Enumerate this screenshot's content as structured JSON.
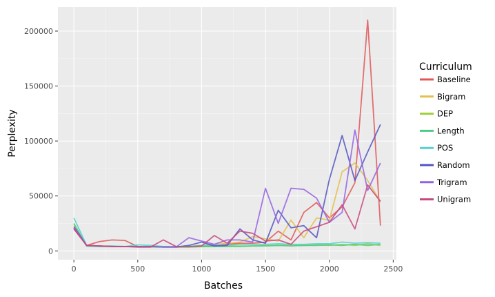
{
  "chart_data": {
    "type": "line",
    "title": "",
    "xlabel": "Batches",
    "ylabel": "Perplexity",
    "xlim": [
      -125,
      2525
    ],
    "ylim": [
      -8000,
      222000
    ],
    "x_ticks": [
      0,
      500,
      1000,
      1500,
      2000,
      2500
    ],
    "y_ticks": [
      0,
      50000,
      100000,
      150000,
      200000
    ],
    "x_tick_labels": [
      "0",
      "500",
      "1000",
      "1500",
      "2000",
      "2500"
    ],
    "y_tick_labels": [
      "0",
      "50000",
      "100000",
      "150000",
      "200000"
    ],
    "grid": true,
    "background": "#ebebeb",
    "legend": {
      "title": "Curriculum",
      "position": "right"
    },
    "series": [
      {
        "name": "Baseline",
        "color": "#e15759",
        "x": [
          0,
          100,
          200,
          300,
          400,
          500,
          600,
          700,
          800,
          900,
          1000,
          1100,
          1200,
          1300,
          1400,
          1500,
          1600,
          1700,
          1800,
          1900,
          2000,
          2100,
          2200,
          2300,
          2400
        ],
        "y": [
          20000,
          5000,
          8500,
          10000,
          9500,
          4000,
          4000,
          4000,
          4000,
          4000,
          4500,
          5000,
          6000,
          7000,
          7000,
          8000,
          18000,
          10000,
          35000,
          44000,
          30000,
          40000,
          62000,
          210000,
          23000
        ]
      },
      {
        "name": "Bigram",
        "color": "#e3c04d",
        "x": [
          0,
          100,
          200,
          300,
          400,
          500,
          600,
          700,
          800,
          900,
          1000,
          1100,
          1200,
          1300,
          1400,
          1500,
          1600,
          1700,
          1800,
          1900,
          2000,
          2100,
          2200,
          2300,
          2400
        ],
        "y": [
          24000,
          5000,
          4500,
          4500,
          4000,
          4000,
          4000,
          4000,
          4000,
          4000,
          5000,
          6000,
          7000,
          8000,
          13000,
          11000,
          9000,
          28000,
          12000,
          30000,
          28000,
          72000,
          80000,
          64000,
          45000
        ]
      },
      {
        "name": "DEP",
        "color": "#9ecf3a",
        "x": [
          0,
          100,
          200,
          300,
          400,
          500,
          600,
          700,
          800,
          900,
          1000,
          1100,
          1200,
          1300,
          1400,
          1500,
          1600,
          1700,
          1800,
          1900,
          2000,
          2100,
          2200,
          2300,
          2400
        ],
        "y": [
          22000,
          4500,
          4000,
          4000,
          4000,
          3500,
          3500,
          3500,
          3500,
          3500,
          3800,
          4000,
          4500,
          4500,
          4500,
          5000,
          5000,
          5500,
          5000,
          5500,
          5000,
          6000,
          5000,
          6500,
          5000
        ]
      },
      {
        "name": "Length",
        "color": "#4fc986",
        "x": [
          0,
          100,
          200,
          300,
          400,
          500,
          600,
          700,
          800,
          900,
          1000,
          1100,
          1200,
          1300,
          1400,
          1500,
          1600,
          1700,
          1800,
          1900,
          2000,
          2100,
          2200,
          2300,
          2400
        ],
        "y": [
          25000,
          4500,
          4000,
          4000,
          4000,
          4000,
          4000,
          4000,
          3500,
          3500,
          4000,
          4000,
          4000,
          4000,
          4500,
          4500,
          5000,
          4500,
          5000,
          5000,
          5500,
          5000,
          6000,
          5000,
          6000
        ]
      },
      {
        "name": "POS",
        "color": "#53d2cf",
        "x": [
          0,
          100,
          200,
          300,
          400,
          500,
          600,
          700,
          800,
          900,
          1000,
          1100,
          1200,
          1300,
          1400,
          1500,
          1600,
          1700,
          1800,
          1900,
          2000,
          2100,
          2200,
          2300,
          2400
        ],
        "y": [
          30000,
          5000,
          4000,
          4500,
          4000,
          5500,
          5000,
          4000,
          4000,
          4000,
          5000,
          5500,
          5000,
          6000,
          6000,
          6000,
          6500,
          6000,
          6000,
          6500,
          6500,
          8000,
          7000,
          7500,
          7000
        ]
      },
      {
        "name": "Random",
        "color": "#5156c0",
        "x": [
          0,
          100,
          200,
          300,
          400,
          500,
          600,
          700,
          800,
          900,
          1000,
          1100,
          1200,
          1300,
          1400,
          1500,
          1600,
          1700,
          1800,
          1900,
          2000,
          2100,
          2200,
          2300,
          2400
        ],
        "y": [
          22000,
          5000,
          4500,
          4000,
          4000,
          4000,
          4000,
          3500,
          3500,
          5000,
          8000,
          4500,
          5000,
          20000,
          10000,
          7000,
          37000,
          21000,
          23000,
          12000,
          65000,
          105000,
          64000,
          90000,
          115000
        ]
      },
      {
        "name": "Trigram",
        "color": "#9561e2",
        "x": [
          0,
          100,
          200,
          300,
          400,
          500,
          600,
          700,
          800,
          900,
          1000,
          1100,
          1200,
          1300,
          1400,
          1500,
          1600,
          1700,
          1800,
          1900,
          2000,
          2100,
          2200,
          2300,
          2400
        ],
        "y": [
          21000,
          5000,
          4500,
          4000,
          4000,
          4000,
          4000,
          3500,
          3500,
          12000,
          9000,
          6000,
          10000,
          10000,
          8000,
          57000,
          25000,
          57000,
          56000,
          48000,
          26000,
          35000,
          110000,
          55000,
          80000
        ]
      },
      {
        "name": "Unigram",
        "color": "#c9467f",
        "x": [
          0,
          100,
          200,
          300,
          400,
          500,
          600,
          700,
          800,
          900,
          1000,
          1100,
          1200,
          1300,
          1400,
          1500,
          1600,
          1700,
          1800,
          1900,
          2000,
          2100,
          2200,
          2300,
          2400
        ],
        "y": [
          20000,
          5000,
          4500,
          4000,
          4000,
          3500,
          3500,
          10000,
          4000,
          4000,
          4500,
          14000,
          7000,
          18000,
          16000,
          9000,
          10000,
          6000,
          18000,
          22000,
          26000,
          42000,
          20000,
          60000,
          45000
        ]
      }
    ]
  }
}
